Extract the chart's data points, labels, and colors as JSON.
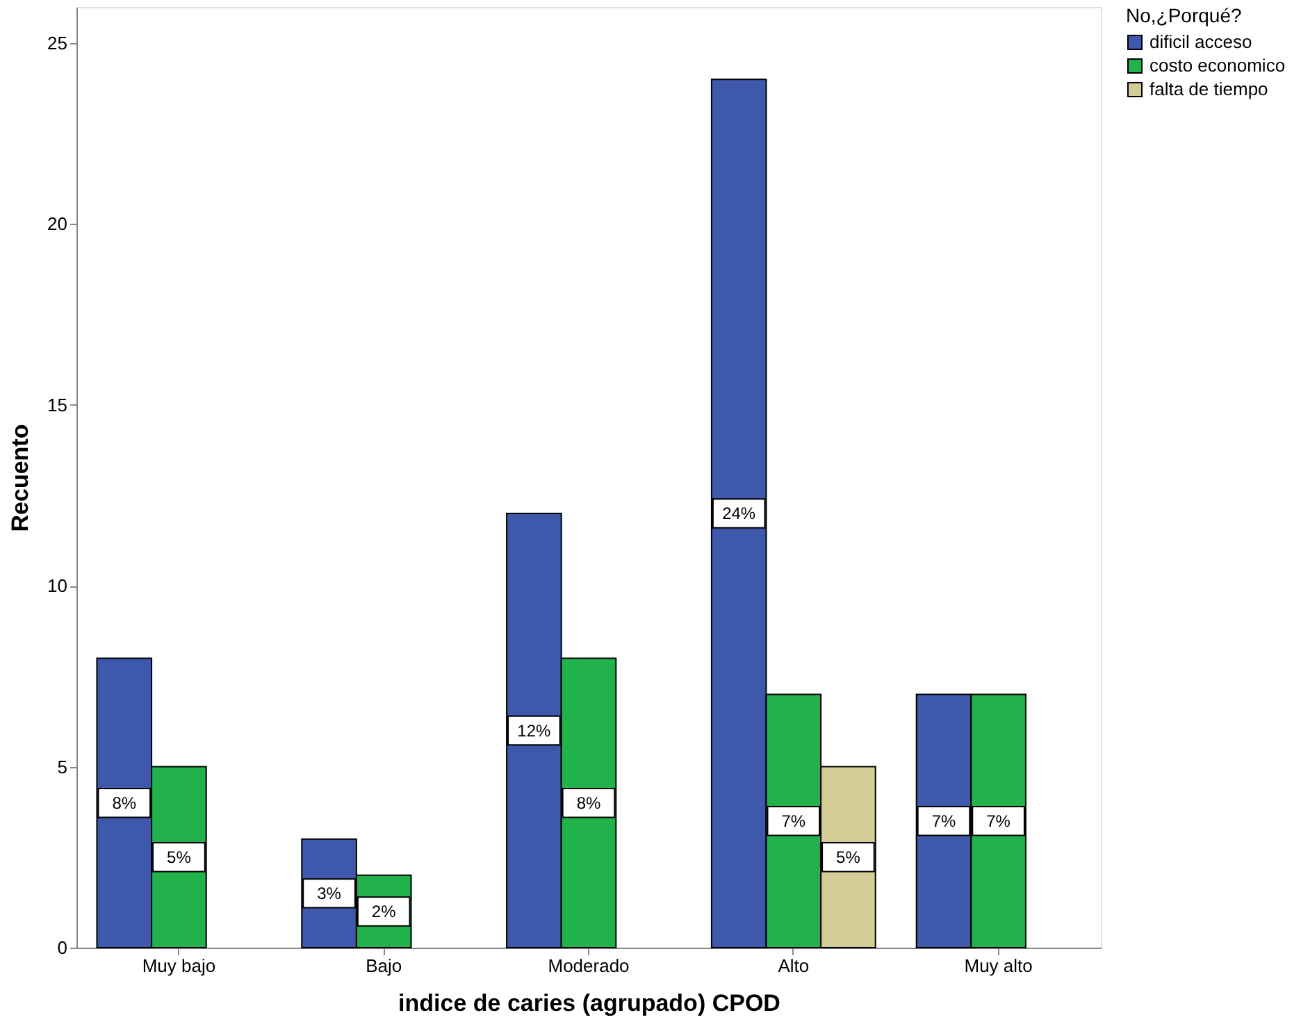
{
  "chart_data": {
    "type": "bar",
    "xlabel": "indice de caries (agrupado) CPOD",
    "ylabel": "Recuento",
    "legend_title": "No,¿Porqué?",
    "categories": [
      "Muy bajo",
      "Bajo",
      "Moderado",
      "Alto",
      "Muy alto"
    ],
    "series": [
      {
        "name": "dificil acceso",
        "color": "#3e58ac",
        "values": [
          8,
          3,
          12,
          24,
          7
        ],
        "value_labels": [
          "8%",
          "3%",
          "12%",
          "24%",
          "7%"
        ]
      },
      {
        "name": "costo economico",
        "color": "#21b24b",
        "values": [
          5,
          2,
          8,
          7,
          7
        ],
        "value_labels": [
          "5%",
          "2%",
          "8%",
          "7%",
          "7%"
        ]
      },
      {
        "name": "falta de tiempo",
        "color": "#d4cc97",
        "values": [
          null,
          null,
          null,
          5,
          null
        ],
        "value_labels": [
          null,
          null,
          null,
          "5%",
          null
        ]
      }
    ],
    "ylim": [
      0,
      26
    ],
    "yticks": [
      0,
      5,
      10,
      15,
      20,
      25
    ],
    "grid": false,
    "legend": "top right"
  }
}
